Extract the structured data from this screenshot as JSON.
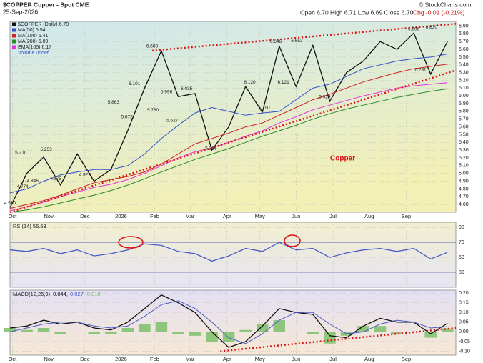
{
  "chart_data": [
    {
      "type": "line",
      "title": "$COPPER Copper - Spot CME",
      "subtitle": "25-Sep-2026",
      "quote": "Open 6.70 High 6.71 Low 6.69 Close 6.70",
      "change": "Chg -0.01 (-0.21%)",
      "credit": "© StockCharts.com",
      "annotation_text": "Copper",
      "legend_extra": "Volume undef",
      "x": [
        0,
        2,
        4,
        6,
        8,
        10,
        12,
        14,
        16,
        18,
        20,
        22,
        24,
        26,
        28,
        30,
        32,
        34,
        36,
        38,
        40,
        42,
        44,
        46,
        48,
        50,
        52
      ],
      "xlim": [
        0,
        53
      ],
      "xticks": [
        {
          "value": 0.3,
          "label": "Oct"
        },
        {
          "value": 4.6,
          "label": "Nov"
        },
        {
          "value": 8.9,
          "label": "Dec"
        },
        {
          "value": 13.2,
          "label": "2026"
        },
        {
          "value": 17.2,
          "label": "Feb"
        },
        {
          "value": 21.4,
          "label": "Mar"
        },
        {
          "value": 25.8,
          "label": "Apr"
        },
        {
          "value": 29.7,
          "label": "May"
        },
        {
          "value": 34,
          "label": "Jun"
        },
        {
          "value": 38.4,
          "label": "Jul"
        },
        {
          "value": 42.7,
          "label": "Aug"
        },
        {
          "value": 47.1,
          "label": "Sep"
        }
      ],
      "ylim": [
        4.5,
        6.96
      ],
      "yticks": [
        {
          "value": 4.6,
          "label": "4.60"
        },
        {
          "value": 4.7,
          "label": "4.70"
        },
        {
          "value": 4.8,
          "label": "4.80"
        },
        {
          "value": 4.9,
          "label": "4.90"
        },
        {
          "value": 5.0,
          "label": "5.00"
        },
        {
          "value": 5.1,
          "label": "5.10"
        },
        {
          "value": 5.2,
          "label": "5.20"
        },
        {
          "value": 5.3,
          "label": "5.30"
        },
        {
          "value": 5.4,
          "label": "5.40"
        },
        {
          "value": 5.5,
          "label": "5.50"
        },
        {
          "value": 5.6,
          "label": "5.60"
        },
        {
          "value": 5.7,
          "label": "5.70"
        },
        {
          "value": 5.8,
          "label": "5.80"
        },
        {
          "value": 5.9,
          "label": "5.90"
        },
        {
          "value": 6.0,
          "label": "6.00"
        },
        {
          "value": 6.1,
          "label": "6.10"
        },
        {
          "value": 6.2,
          "label": "6.20"
        },
        {
          "value": 6.3,
          "label": "6.30"
        },
        {
          "value": 6.4,
          "label": "6.40"
        },
        {
          "value": 6.5,
          "label": "6.50"
        },
        {
          "value": 6.6,
          "label": "6.60"
        },
        {
          "value": 6.7,
          "label": "6.70"
        },
        {
          "value": 6.8,
          "label": "6.80"
        },
        {
          "value": 6.9,
          "label": "6.90"
        }
      ],
      "grid": true,
      "series": [
        {
          "name": "$COPPER (Daily) 6.70",
          "color": "#111111",
          "values": [
            4.56,
            5.0,
            5.21,
            4.85,
            5.25,
            4.9,
            5.05,
            5.55,
            6.1,
            6.58,
            5.99,
            6.03,
            5.3,
            5.6,
            6.12,
            5.79,
            6.64,
            6.12,
            6.65,
            5.93,
            6.3,
            6.45,
            6.7,
            6.6,
            6.81,
            6.28,
            6.7
          ]
        },
        {
          "name": "MA(50) 6.54",
          "color": "#3050c8",
          "values": [
            4.75,
            4.8,
            4.9,
            4.98,
            5.02,
            5.05,
            5.05,
            5.1,
            5.25,
            5.45,
            5.62,
            5.78,
            5.85,
            5.8,
            5.75,
            5.78,
            5.8,
            5.95,
            6.1,
            6.15,
            6.25,
            6.35,
            6.4,
            6.45,
            6.48,
            6.5,
            6.54
          ]
        },
        {
          "name": "MA(100) 6.41",
          "color": "#cc2222",
          "values": [
            4.55,
            4.6,
            4.65,
            4.72,
            4.8,
            4.88,
            4.92,
            4.96,
            5.02,
            5.12,
            5.25,
            5.38,
            5.45,
            5.52,
            5.6,
            5.65,
            5.75,
            5.85,
            5.95,
            6.02,
            6.1,
            6.18,
            6.24,
            6.3,
            6.35,
            6.38,
            6.41
          ]
        },
        {
          "name": "MA(200) 6.09",
          "color": "#2a8a2a",
          "values": [
            4.5,
            4.53,
            4.57,
            4.62,
            4.67,
            4.72,
            4.78,
            4.85,
            4.93,
            5.02,
            5.1,
            5.18,
            5.25,
            5.32,
            5.4,
            5.48,
            5.55,
            5.62,
            5.7,
            5.77,
            5.83,
            5.88,
            5.93,
            5.98,
            6.02,
            6.06,
            6.09
          ]
        },
        {
          "name": "EMA(165) 6.17",
          "color": "#e030e0",
          "values": [
            4.52,
            4.57,
            4.63,
            4.7,
            4.76,
            4.82,
            4.86,
            4.92,
            5.0,
            5.1,
            5.2,
            5.28,
            5.33,
            5.4,
            5.48,
            5.55,
            5.65,
            5.73,
            5.82,
            5.88,
            5.94,
            6.0,
            6.05,
            6.1,
            6.13,
            6.15,
            6.17
          ]
        }
      ],
      "trendlines": [
        {
          "color": "#dd1111",
          "x": [
            16.9,
            53
          ],
          "values": [
            6.583,
            6.93
          ]
        },
        {
          "color": "#dd1111",
          "x": [
            0,
            53
          ],
          "values": [
            4.5,
            6.33
          ]
        }
      ],
      "annotations": [
        {
          "x": 0,
          "value": 4.56,
          "label": "4.560"
        },
        {
          "x": 1.5,
          "value": 4.774,
          "label": "4.774"
        },
        {
          "x": 1.3,
          "value": 5.21,
          "label": "5.210"
        },
        {
          "x": 2.7,
          "value": 4.846,
          "label": "4.846"
        },
        {
          "x": 4.3,
          "value": 5.253,
          "label": "5.253"
        },
        {
          "x": 5.4,
          "value": 4.875,
          "label": "4.875"
        },
        {
          "x": 8.9,
          "value": 4.927,
          "label": "4.927"
        },
        {
          "x": 12.3,
          "value": 5.863,
          "label": "5.863"
        },
        {
          "x": 14.8,
          "value": 6.101,
          "label": "6.101"
        },
        {
          "x": 13.9,
          "value": 5.672,
          "label": "5.672"
        },
        {
          "x": 16.9,
          "value": 6.583,
          "label": "6.583"
        },
        {
          "x": 18.6,
          "value": 5.996,
          "label": "5.996"
        },
        {
          "x": 17,
          "value": 5.76,
          "label": "5.760"
        },
        {
          "x": 21,
          "value": 6.035,
          "label": "6.035"
        },
        {
          "x": 19.3,
          "value": 5.627,
          "label": "5.627"
        },
        {
          "x": 23.9,
          "value": 5.268,
          "label": "5.268"
        },
        {
          "x": 28.5,
          "value": 6.12,
          "label": "6.120"
        },
        {
          "x": 30.2,
          "value": 5.79,
          "label": "5.790"
        },
        {
          "x": 31.6,
          "value": 6.646,
          "label": "6.646"
        },
        {
          "x": 32.5,
          "value": 6.121,
          "label": "6.121"
        },
        {
          "x": 34.1,
          "value": 6.653,
          "label": "6.653"
        },
        {
          "x": 37.4,
          "value": 5.929,
          "label": "5.929"
        },
        {
          "x": 48.8,
          "value": 6.281,
          "label": "6.281"
        },
        {
          "x": 48,
          "value": 6.806,
          "label": "6.806"
        },
        {
          "x": 50.1,
          "value": 6.83,
          "label": "6.830"
        }
      ]
    },
    {
      "type": "line",
      "title": "RSI(14) 56.63",
      "ylim": [
        10,
        97
      ],
      "yticks": [
        30,
        50,
        70,
        90
      ],
      "grid": true,
      "series": [
        {
          "color": "#4a5cc8",
          "values": [
            60,
            58,
            62,
            55,
            60,
            52,
            55,
            60,
            68,
            66,
            58,
            55,
            45,
            52,
            62,
            58,
            70,
            60,
            62,
            50,
            56,
            60,
            62,
            58,
            62,
            48,
            56.63
          ]
        }
      ]
    },
    {
      "type": "macd",
      "title": "MACD(12,26,9)",
      "ylim": [
        -0.12,
        0.215
      ],
      "yticks": [
        {
          "value": -0.1,
          "label": "-0.10"
        },
        {
          "value": -0.05,
          "label": "-0.05"
        },
        {
          "value": 0,
          "label": "0.00"
        },
        {
          "value": 0.05,
          "label": "0.05"
        },
        {
          "value": 0.1,
          "label": "0.10"
        },
        {
          "value": 0.15,
          "label": "0.15"
        },
        {
          "value": 0.2,
          "label": "0.20"
        }
      ],
      "grid": true,
      "series": [
        {
          "legend": "0.044,",
          "color": "#111111",
          "kind": "line",
          "values": [
            0.02,
            0.03,
            0.06,
            0.04,
            0.05,
            0.02,
            0.01,
            0.05,
            0.12,
            0.19,
            0.15,
            0.1,
            0.0,
            -0.08,
            -0.05,
            0.03,
            0.12,
            0.1,
            0.09,
            -0.02,
            -0.03,
            0.03,
            0.07,
            0.05,
            0.05,
            -0.01,
            0.044
          ]
        },
        {
          "legend": "0.027,",
          "color": "#4a5cc8",
          "kind": "line",
          "values": [
            0.0,
            0.02,
            0.04,
            0.05,
            0.05,
            0.03,
            0.02,
            0.03,
            0.08,
            0.14,
            0.16,
            0.12,
            0.05,
            -0.03,
            -0.06,
            -0.01,
            0.06,
            0.1,
            0.1,
            0.04,
            -0.01,
            0.0,
            0.04,
            0.06,
            0.05,
            0.02,
            0.027
          ]
        },
        {
          "legend": "0.018",
          "color": "#7cc06a",
          "kind": "bar",
          "values": [
            0.02,
            0.01,
            0.02,
            -0.01,
            0,
            -0.01,
            -0.01,
            0.02,
            0.04,
            0.05,
            -0.01,
            -0.02,
            -0.05,
            -0.05,
            0.01,
            0.04,
            0.06,
            0,
            -0.01,
            -0.06,
            -0.02,
            0.03,
            0.03,
            -0.01,
            0,
            -0.03,
            0.018
          ]
        }
      ],
      "trendlines": [
        {
          "color": "#dd1111",
          "x": [
            25,
            53
          ],
          "values": [
            -0.1,
            0.02
          ]
        }
      ]
    }
  ]
}
